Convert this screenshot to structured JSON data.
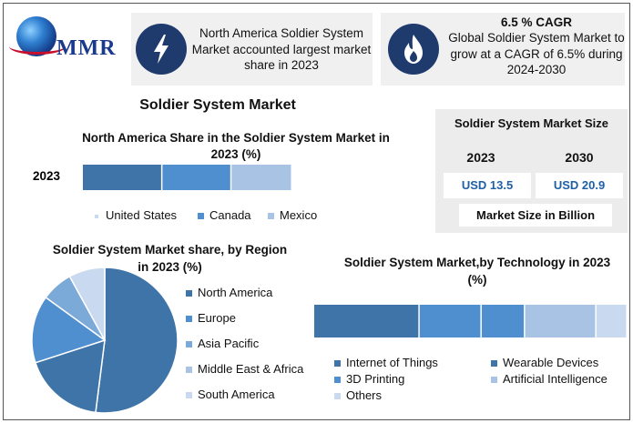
{
  "logo": {
    "text": "MMR"
  },
  "callout_left": {
    "icon": "lightning-bolt-icon",
    "text": "North America Soldier System Market accounted largest market share in 2023"
  },
  "callout_right": {
    "icon": "flame-icon",
    "title": "6.5 % CAGR",
    "text": "Global Soldier System Market to grow at a CAGR of 6.5% during 2024-2030"
  },
  "main_title": "Soldier System Market",
  "market_size": {
    "title": "Soldier System Market Size",
    "years": [
      "2023",
      "2030"
    ],
    "values": [
      "USD 13.5",
      "USD 20.9"
    ],
    "unit_label": "Market Size in Billion"
  },
  "colors": {
    "dark": "#3f74a8",
    "mid": "#4f8fd0",
    "light": "#7ba9d8",
    "pale": "#a9c3e4",
    "faint": "#c9d9f0",
    "icon_bg": "#1f3b6e"
  },
  "chart_data": [
    {
      "type": "bar",
      "title": "North America Share in the Soldier System Market in 2023 (%)",
      "categories": [
        "2023"
      ],
      "series": [
        {
          "name": "United States",
          "values": [
            38
          ]
        },
        {
          "name": "Canada",
          "values": [
            33
          ]
        },
        {
          "name": "Mexico",
          "values": [
            29
          ]
        }
      ],
      "stacked": true,
      "orientation": "horizontal",
      "legend": "bottom"
    },
    {
      "type": "pie",
      "title": "Soldier System Market share, by Region in 2023 (%)",
      "labels": [
        "North America",
        "Europe",
        "Asia Pacific",
        "Middle East & Africa",
        "South America"
      ],
      "values": [
        52,
        18,
        15,
        7,
        8
      ],
      "legend": "right"
    },
    {
      "type": "bar",
      "title": "Soldier System Market,by Technology in 2023 (%)",
      "series": [
        {
          "name": "Internet of Things",
          "values": [
            34
          ]
        },
        {
          "name": "Wearable Devices",
          "values": [
            20
          ]
        },
        {
          "name": "3D Printing",
          "values": [
            14
          ]
        },
        {
          "name": "Artificial Intelligence",
          "values": [
            23
          ]
        },
        {
          "name": "Others",
          "values": [
            10
          ]
        }
      ],
      "stacked": true,
      "orientation": "horizontal",
      "legend": "bottom"
    }
  ]
}
